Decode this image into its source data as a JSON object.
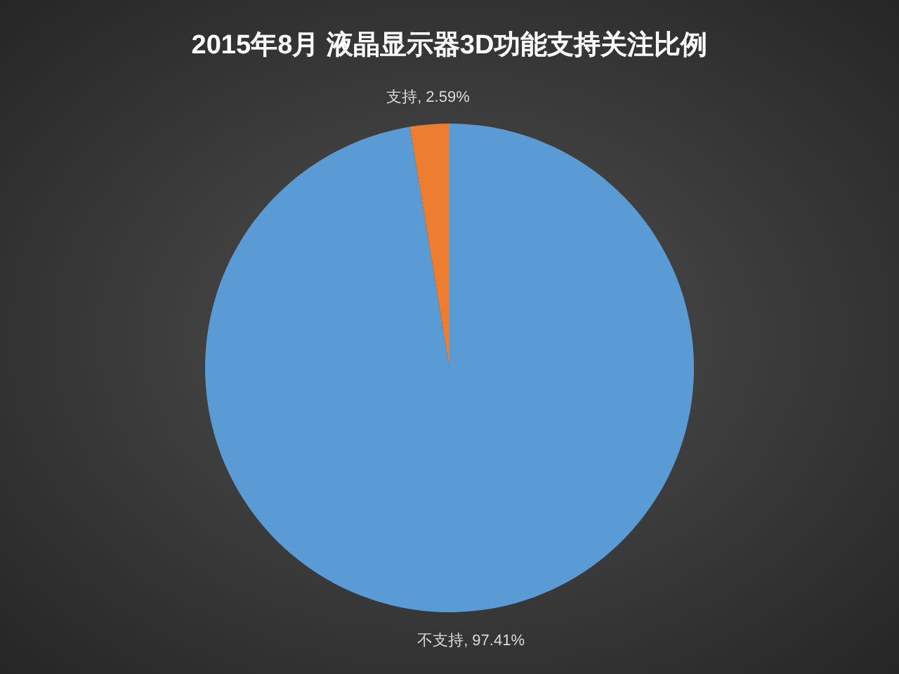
{
  "chart_data": {
    "type": "pie",
    "title": "2015年8月  液晶显示器3D功能支持关注比例",
    "categories": [
      "不支持",
      "支持"
    ],
    "values": [
      97.41,
      2.59
    ],
    "colors": [
      "#5b9bd5",
      "#ed7d31"
    ],
    "value_labels": [
      ", 97.41%",
      ", 2.59%"
    ]
  }
}
